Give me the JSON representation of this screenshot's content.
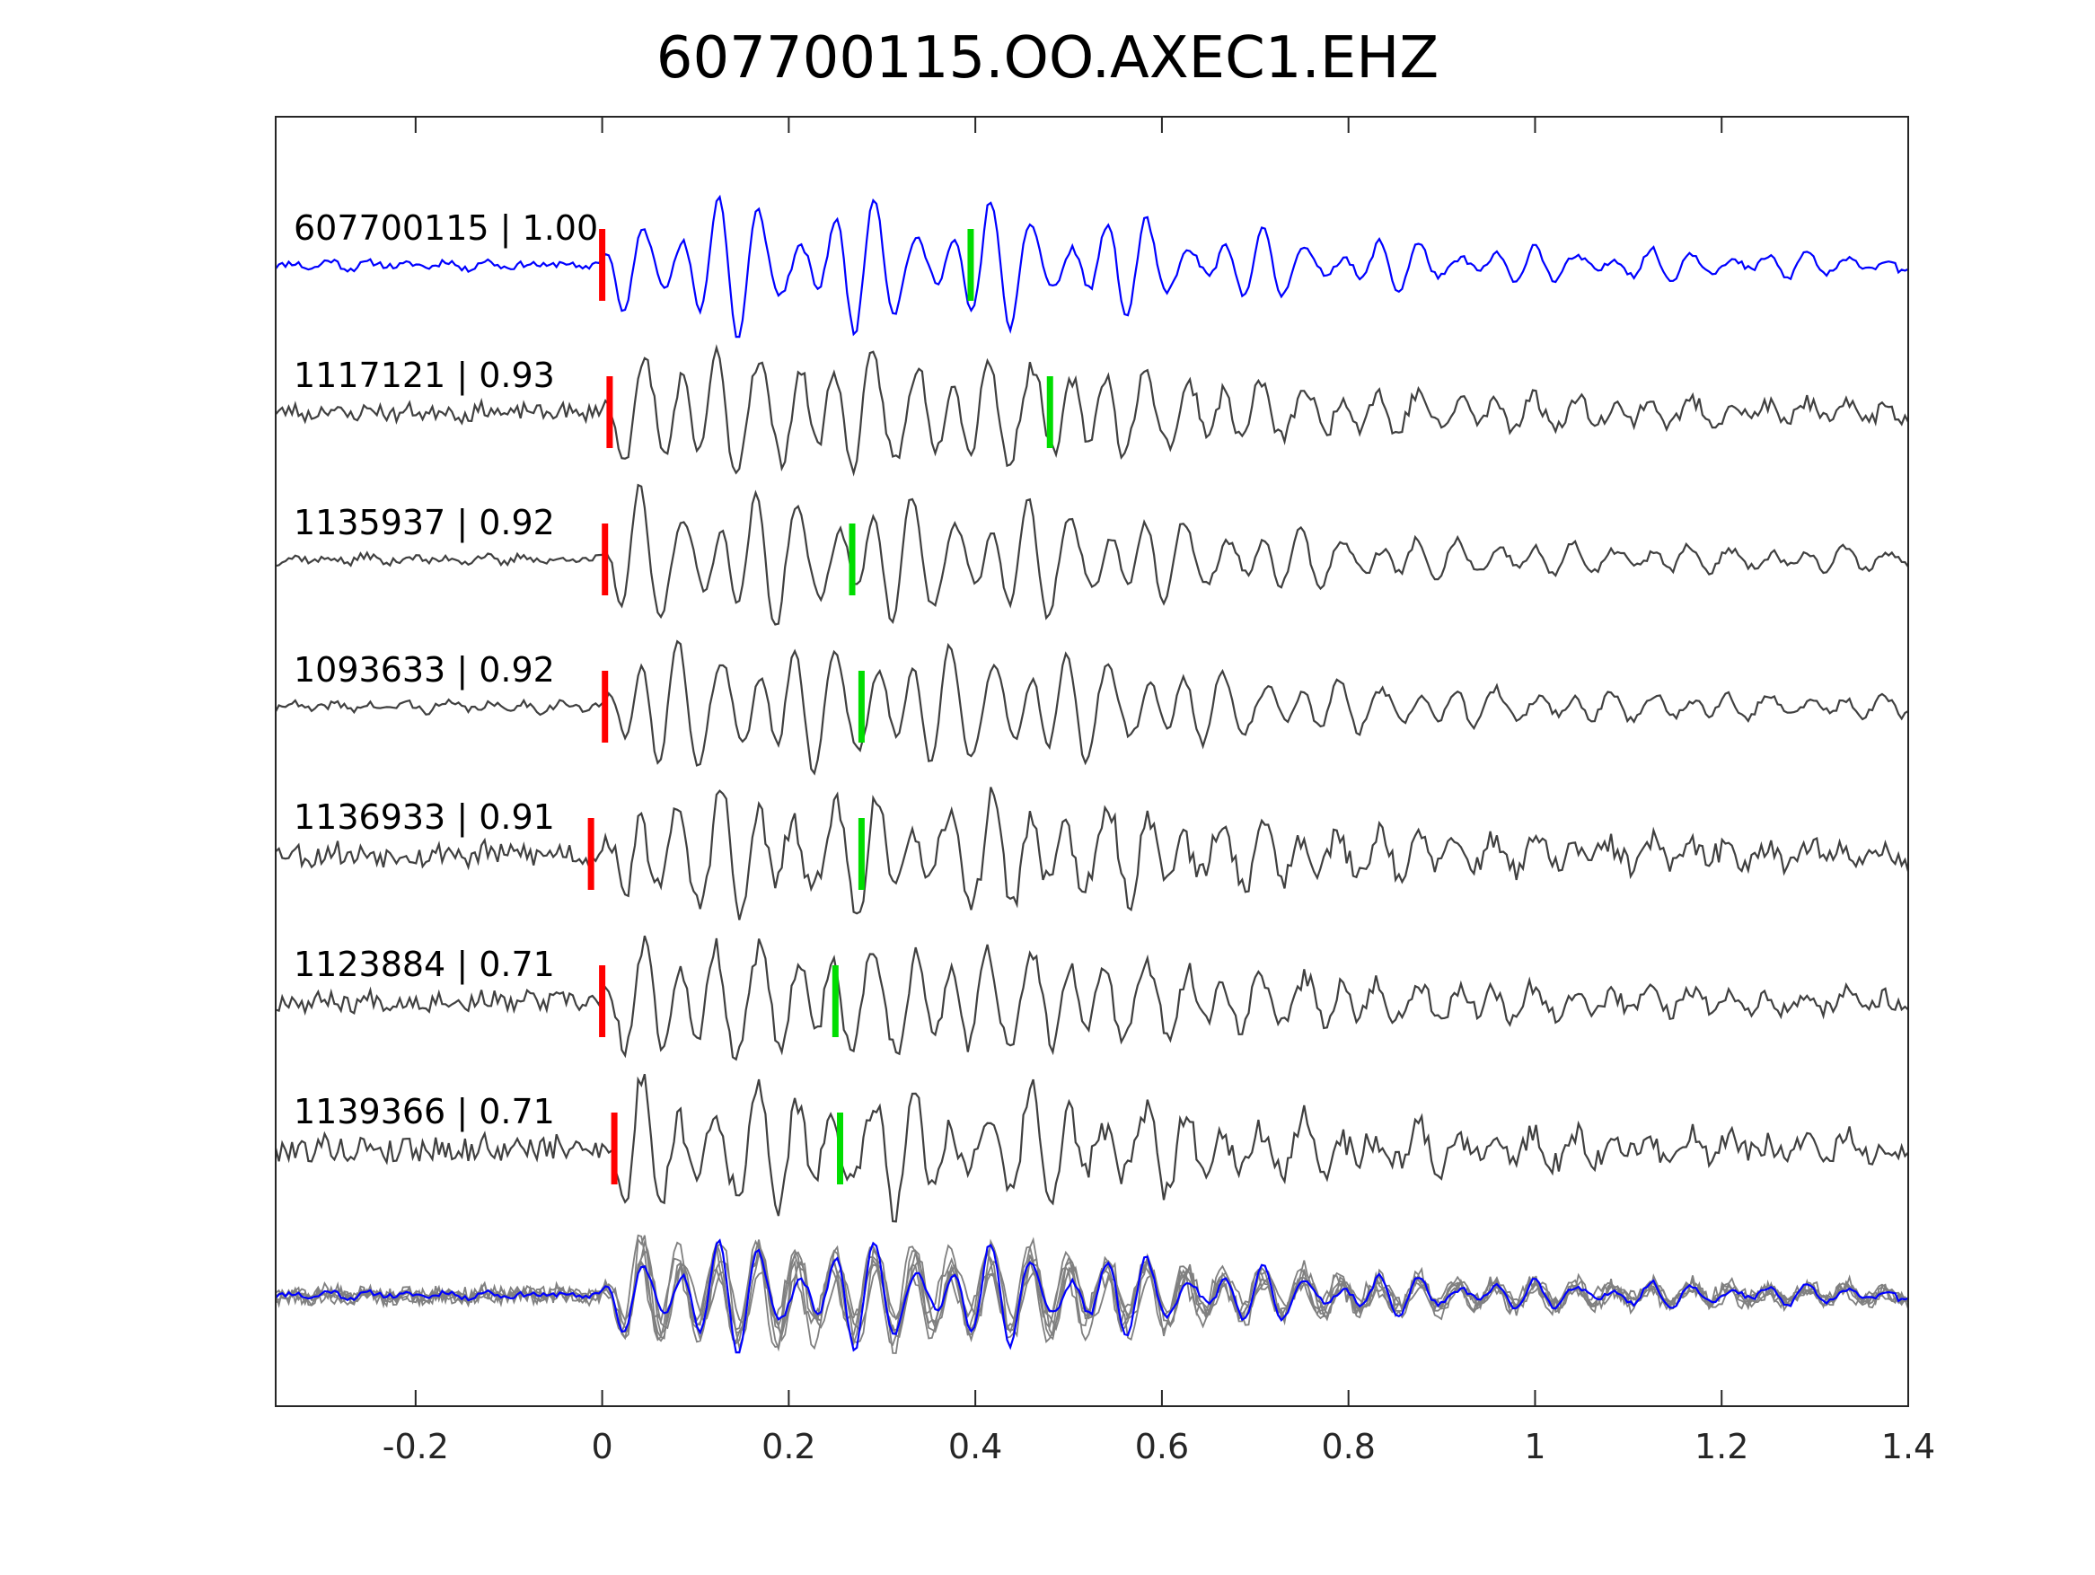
{
  "chart_data": {
    "type": "line",
    "title": "607700115.OO.AXEC1.EHZ",
    "xlabel": "",
    "ylabel": "",
    "xlim": [
      -0.35,
      1.4
    ],
    "xticks": [
      -0.2,
      0,
      0.2,
      0.4,
      0.6,
      0.8,
      1,
      1.2,
      1.4
    ],
    "xtick_labels": [
      "-0.2",
      "0",
      "0.2",
      "0.4",
      "0.6",
      "0.8",
      "1",
      "1.2",
      "1.4"
    ],
    "y_ticks_shown": false,
    "grid": false,
    "colors": {
      "template_trace": "#0000ff",
      "match_trace": "#404040",
      "stack_trace": "#808080",
      "p_pick": "#ff0000",
      "s_pick": "#00dd00",
      "axis": "#262626"
    },
    "traces": [
      {
        "id": "607700115",
        "cc": "1.00",
        "label": "607700115 | 1.00",
        "color": "template",
        "p_pick_time": 0.0,
        "s_pick_time": 0.395,
        "seed": 11,
        "noise": 0.05
      },
      {
        "id": "1117121",
        "cc": "0.93",
        "label": "1117121 | 0.93",
        "color": "match",
        "p_pick_time": 0.008,
        "s_pick_time": 0.48,
        "seed": 23,
        "noise": 0.12
      },
      {
        "id": "1135937",
        "cc": "0.92",
        "label": "1135937 | 0.92",
        "color": "match",
        "p_pick_time": 0.003,
        "s_pick_time": 0.268,
        "seed": 37,
        "noise": 0.06
      },
      {
        "id": "1093633",
        "cc": "0.92",
        "label": "1093633 | 0.92",
        "color": "match",
        "p_pick_time": 0.003,
        "s_pick_time": 0.278,
        "seed": 41,
        "noise": 0.06
      },
      {
        "id": "1136933",
        "cc": "0.91",
        "label": "1136933 | 0.91",
        "color": "match",
        "p_pick_time": -0.012,
        "s_pick_time": 0.278,
        "seed": 53,
        "noise": 0.18
      },
      {
        "id": "1123884",
        "cc": "0.71",
        "label": "1123884 | 0.71",
        "color": "match",
        "p_pick_time": 0.0,
        "s_pick_time": 0.25,
        "seed": 67,
        "noise": 0.14
      },
      {
        "id": "1139366",
        "cc": "0.71",
        "label": "1139366 | 0.71",
        "color": "match",
        "p_pick_time": 0.013,
        "s_pick_time": 0.255,
        "seed": 79,
        "noise": 0.2
      }
    ],
    "stack": {
      "description_shown": false,
      "overlay_count": 7
    }
  }
}
